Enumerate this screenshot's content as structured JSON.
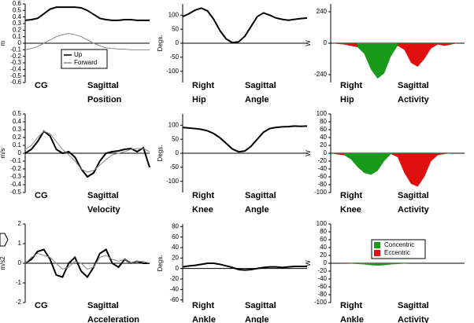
{
  "chart_data": [
    {
      "type": "line",
      "y_label": "m",
      "label_left": [
        "CG"
      ],
      "label_right": [
        "Sagittal",
        "Position"
      ],
      "ylim": [
        -0.6,
        0.6
      ],
      "yticks": [
        0.6,
        0.5,
        0.4,
        0.3,
        0.2,
        0.1,
        0,
        -0.1,
        -0.2,
        -0.3,
        -0.4,
        -0.5,
        -0.6
      ],
      "legend": "inside",
      "series": [
        {
          "name": "Up",
          "color": "#000000",
          "values": [
            0.35,
            0.36,
            0.38,
            0.45,
            0.52,
            0.55,
            0.55,
            0.55,
            0.55,
            0.54,
            0.5,
            0.44,
            0.38,
            0.36,
            0.35,
            0.35,
            0.36,
            0.36,
            0.35,
            0.35,
            0.35
          ]
        },
        {
          "name": "Forward",
          "color": "#888888",
          "values": [
            -0.1,
            -0.08,
            -0.05,
            0,
            0.05,
            0.1,
            0.13,
            0.15,
            0.13,
            0.1,
            0.05,
            0,
            -0.04,
            -0.07,
            -0.08,
            -0.09,
            -0.09,
            -0.1,
            -0.1,
            -0.1,
            -0.1
          ]
        }
      ]
    },
    {
      "type": "line",
      "y_label": "Degs.",
      "label_left": [
        "Right",
        "Hip"
      ],
      "label_right": [
        "Sagittal",
        "Angle"
      ],
      "ylim": [
        -140,
        140
      ],
      "yticks": [
        100,
        50,
        0,
        -50,
        -100
      ],
      "series": [
        {
          "color": "#000000",
          "values": [
            95,
            105,
            118,
            125,
            115,
            85,
            45,
            15,
            2,
            5,
            25,
            60,
            95,
            108,
            100,
            90,
            85,
            82,
            85,
            88,
            90
          ]
        }
      ]
    },
    {
      "type": "area",
      "y_label": "W",
      "label_left": [
        "Right",
        "Hip"
      ],
      "label_right": [
        "Sagittal",
        "Activity"
      ],
      "ylim": [
        -300,
        300
      ],
      "yticks": [
        240,
        0,
        -240
      ],
      "series": [
        {
          "color": "#1a9a1a",
          "values": [
            null,
            null,
            null,
            null,
            -30,
            -80,
            -200,
            -270,
            -230,
            -100,
            -20,
            null,
            null,
            null,
            null,
            null,
            null,
            null,
            null,
            null,
            null
          ]
        },
        {
          "color": "#e01010",
          "values": [
            0,
            -5,
            -10,
            -20,
            -30,
            null,
            null,
            null,
            null,
            null,
            -20,
            -50,
            -150,
            -180,
            -120,
            -40,
            -10,
            -20,
            -10,
            0,
            0
          ]
        }
      ]
    },
    {
      "type": "line",
      "y_label": "m/s",
      "label_left": [
        "CG"
      ],
      "label_right": [
        "Sagittal",
        "Velocity"
      ],
      "ylim": [
        -0.5,
        0.5
      ],
      "yticks": [
        0.5,
        0.4,
        0.3,
        0.2,
        0.1,
        0,
        -0.1,
        -0.2,
        -0.3,
        -0.4,
        -0.5
      ],
      "series": [
        {
          "color": "#000000",
          "values": [
            0,
            0.05,
            0.15,
            0.28,
            0.22,
            0.05,
            0,
            0.02,
            -0.05,
            -0.2,
            -0.3,
            -0.25,
            -0.1,
            0,
            0.02,
            0.03,
            0.05,
            0.06,
            0.02,
            0.07,
            -0.18
          ]
        },
        {
          "color": "#888888",
          "values": [
            0.05,
            0.1,
            0.2,
            0.28,
            0.25,
            0.15,
            0.05,
            -0.02,
            -0.1,
            -0.2,
            -0.24,
            -0.22,
            -0.15,
            -0.08,
            -0.02,
            0,
            0.02,
            0.05,
            0.06,
            0.06,
            0.02
          ]
        }
      ]
    },
    {
      "type": "line",
      "y_label": "Degs.",
      "label_left": [
        "Right",
        "Knee"
      ],
      "label_right": [
        "Sagittal",
        "Angle"
      ],
      "ylim": [
        -140,
        140
      ],
      "yticks": [
        100,
        50,
        0,
        -50,
        -100
      ],
      "series": [
        {
          "color": "#000000",
          "values": [
            92,
            90,
            88,
            85,
            80,
            70,
            55,
            35,
            15,
            5,
            8,
            25,
            50,
            75,
            88,
            92,
            94,
            95,
            97,
            96,
            97
          ]
        }
      ]
    },
    {
      "type": "area",
      "y_label": "W",
      "label_left": [
        "Right",
        "Knee"
      ],
      "label_right": [
        "Sagittal",
        "Activity"
      ],
      "ylim": [
        -100,
        100
      ],
      "yticks": [
        100,
        80,
        60,
        40,
        20,
        0,
        -20,
        -40,
        -60,
        -80,
        -100
      ],
      "series": [
        {
          "color": "#1a9a1a",
          "values": [
            null,
            null,
            -5,
            -15,
            -35,
            -50,
            -55,
            -45,
            -20,
            -2,
            null,
            null,
            null,
            null,
            null,
            null,
            null,
            null,
            null,
            null,
            null
          ]
        },
        {
          "color": "#e01010",
          "values": [
            0,
            -3,
            -5,
            null,
            null,
            null,
            null,
            null,
            null,
            -2,
            -10,
            -50,
            -78,
            -85,
            -60,
            -20,
            -5,
            -2,
            0,
            0,
            0
          ]
        }
      ]
    },
    {
      "type": "line",
      "y_label": "m/s2",
      "label_left": [
        "CG"
      ],
      "label_right": [
        "Sagittal",
        "Acceleration"
      ],
      "ylim": [
        -2,
        2
      ],
      "yticks": [
        2,
        1,
        0,
        -1,
        -2
      ],
      "series": [
        {
          "color": "#000000",
          "values": [
            0,
            0.2,
            0.6,
            0.7,
            0.2,
            -0.6,
            -0.7,
            0,
            0.3,
            -0.4,
            -0.7,
            -0.2,
            0.5,
            0.7,
            0,
            -0.2,
            0.2,
            0,
            0.1,
            0,
            0
          ]
        },
        {
          "color": "#888888",
          "values": [
            0,
            0.3,
            0.5,
            0.4,
            0.3,
            0,
            -0.3,
            -0.2,
            0.1,
            0,
            -0.3,
            -0.2,
            0.3,
            0.4,
            0.2,
            0.1,
            0.2,
            0,
            0.1,
            0.1,
            0
          ]
        }
      ]
    },
    {
      "type": "line",
      "y_label": "Degs.",
      "label_left": [
        "Right",
        "Ankle"
      ],
      "label_right": [
        "Sagittal",
        "Angle"
      ],
      "ylim": [
        -65,
        85
      ],
      "yticks": [
        80,
        60,
        40,
        20,
        0,
        -20,
        -40,
        -60
      ],
      "series": [
        {
          "color": "#000000",
          "values": [
            3,
            5,
            6,
            8,
            10,
            10,
            8,
            5,
            2,
            -2,
            -3,
            -2,
            0,
            2,
            3,
            3,
            2,
            3,
            4,
            4,
            4
          ]
        }
      ]
    },
    {
      "type": "area",
      "y_label": "W",
      "label_left": [
        "Right",
        "Ankle"
      ],
      "label_right": [
        "Sagittal",
        "Activity"
      ],
      "ylim": [
        -100,
        100
      ],
      "yticks": [
        100,
        80,
        60,
        40,
        20,
        0,
        -20,
        -40,
        -60,
        -80,
        -100
      ],
      "legend": "inside",
      "series": [
        {
          "name": "Concentric",
          "color": "#1a9a1a",
          "values": [
            null,
            null,
            null,
            -1,
            -2,
            -3,
            -5,
            -6,
            -5,
            -3,
            -2,
            -1,
            0,
            null,
            null,
            null,
            null,
            null,
            null,
            null,
            null
          ]
        },
        {
          "name": "Eccentric",
          "color": "#e01010",
          "values": [
            0,
            0,
            0,
            -1,
            null,
            null,
            null,
            null,
            null,
            null,
            null,
            null,
            0,
            0,
            0,
            0,
            0,
            0,
            0,
            0,
            0
          ]
        }
      ]
    }
  ]
}
